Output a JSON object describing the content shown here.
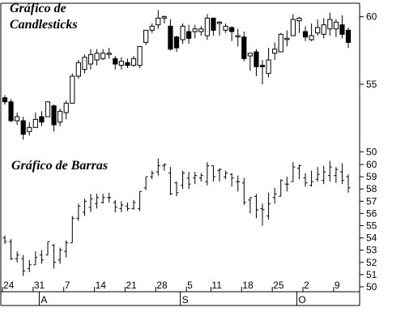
{
  "chart_data": [
    {
      "type": "candlestick",
      "title_line1": "Gráfico de",
      "title_line2": "Candlesticks",
      "y_ticks": [
        50,
        55,
        60
      ],
      "ylim": [
        49.6,
        61.0
      ],
      "candles": [
        [
          54.0,
          53.7,
          54.2,
          53.5
        ],
        [
          53.7,
          52.3,
          53.9,
          52.2
        ],
        [
          52.3,
          52.6,
          52.9,
          52.0
        ],
        [
          52.3,
          51.3,
          52.6,
          50.9
        ],
        [
          51.5,
          51.8,
          52.2,
          51.2
        ],
        [
          51.8,
          52.4,
          52.9,
          51.8
        ],
        [
          52.6,
          52.2,
          53.0,
          51.9
        ],
        [
          52.6,
          53.7,
          53.7,
          52.6
        ],
        [
          53.4,
          52.0,
          53.5,
          51.5
        ],
        [
          52.2,
          53.0,
          53.2,
          51.9
        ],
        [
          52.9,
          53.6,
          53.8,
          52.4
        ],
        [
          53.6,
          55.6,
          55.8,
          53.6
        ],
        [
          55.6,
          56.6,
          56.8,
          55.4
        ],
        [
          56.1,
          57.0,
          57.2,
          55.8
        ],
        [
          56.5,
          57.2,
          57.6,
          56.1
        ],
        [
          56.8,
          57.3,
          57.6,
          56.4
        ],
        [
          56.9,
          57.3,
          57.6,
          56.8
        ],
        [
          57.3,
          57.3,
          57.7,
          56.9
        ],
        [
          56.9,
          56.5,
          57.1,
          56.1
        ],
        [
          56.4,
          56.7,
          57.0,
          56.1
        ],
        [
          56.6,
          56.4,
          56.9,
          56.2
        ],
        [
          56.4,
          56.9,
          57.1,
          56.3
        ],
        [
          56.4,
          57.8,
          57.8,
          56.2
        ],
        [
          58.1,
          59.0,
          59.0,
          57.9
        ],
        [
          59.0,
          59.3,
          59.5,
          58.8
        ],
        [
          59.4,
          59.9,
          60.5,
          59.1
        ],
        [
          59.9,
          60.0,
          60.1,
          59.5
        ],
        [
          59.3,
          57.6,
          59.8,
          57.5
        ],
        [
          58.5,
          57.7,
          58.6,
          57.4
        ],
        [
          58.3,
          59.3,
          59.5,
          58.0
        ],
        [
          58.9,
          58.4,
          59.4,
          58.0
        ],
        [
          58.9,
          59.1,
          59.4,
          58.4
        ],
        [
          58.9,
          59.1,
          59.3,
          58.6
        ],
        [
          58.6,
          59.9,
          60.2,
          58.3
        ],
        [
          59.9,
          59.0,
          59.9,
          58.6
        ],
        [
          59.5,
          59.6,
          59.7,
          58.6
        ],
        [
          59.0,
          59.3,
          59.5,
          58.8
        ],
        [
          59.2,
          58.9,
          59.3,
          58.2
        ],
        [
          58.6,
          58.6,
          59.1,
          57.8
        ],
        [
          58.5,
          56.9,
          58.9,
          56.7
        ],
        [
          57.1,
          57.3,
          57.3,
          56.0
        ],
        [
          57.4,
          56.3,
          57.6,
          55.6
        ],
        [
          56.4,
          56.3,
          56.8,
          55.0
        ],
        [
          55.8,
          56.8,
          57.7,
          55.5
        ],
        [
          57.3,
          57.6,
          58.1,
          56.8
        ],
        [
          57.4,
          58.7,
          58.8,
          57.4
        ],
        [
          58.4,
          58.4,
          59.0,
          57.8
        ],
        [
          58.6,
          59.8,
          60.2,
          58.6
        ],
        [
          59.7,
          59.9,
          60.0,
          58.8
        ],
        [
          58.9,
          58.5,
          59.3,
          58.2
        ],
        [
          58.3,
          58.6,
          59.5,
          58.2
        ],
        [
          58.8,
          59.2,
          59.8,
          58.6
        ],
        [
          58.7,
          59.4,
          59.9,
          58.4
        ],
        [
          59.1,
          59.8,
          60.3,
          58.6
        ],
        [
          59.1,
          59.6,
          59.8,
          58.5
        ],
        [
          59.4,
          58.7,
          60.1,
          58.4
        ],
        [
          59.0,
          58.1,
          59.2,
          57.7
        ]
      ]
    },
    {
      "type": "ohlc",
      "title": "Gráfico de Barras",
      "y_ticks": [
        50,
        51,
        52,
        53,
        54,
        55,
        56,
        57,
        58,
        59,
        60
      ],
      "ylim": [
        49.6,
        60.6
      ],
      "x_ticks": [
        {
          "label": "24",
          "bar": 0
        },
        {
          "label": "31",
          "bar": 5
        },
        {
          "label": "7",
          "bar": 10
        },
        {
          "label": "14",
          "bar": 15
        },
        {
          "label": "21",
          "bar": 20
        },
        {
          "label": "28",
          "bar": 25
        },
        {
          "label": "5",
          "bar": 30
        },
        {
          "label": "11",
          "bar": 34
        },
        {
          "label": "18",
          "bar": 39
        },
        {
          "label": "25",
          "bar": 44
        },
        {
          "label": "2",
          "bar": 49
        },
        {
          "label": "9",
          "bar": 54
        }
      ],
      "months": [
        {
          "label": "A",
          "bar": 6
        },
        {
          "label": "S",
          "bar": 29
        },
        {
          "label": "O",
          "bar": 48
        }
      ]
    }
  ]
}
